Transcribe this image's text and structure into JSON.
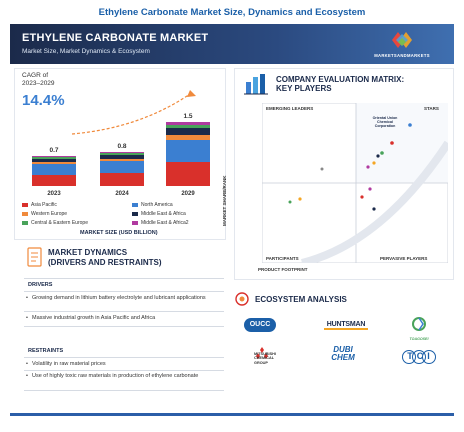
{
  "header": {
    "top_title": "Ethylene Carbonate Market Size, Dynamics and Ecosystem",
    "banner_title": "ETHYLENE CARBONATE MARKET",
    "banner_subtitle": "Market Size, Market Dynamics & Ecosystem",
    "logo_text": "MARKETSANDMARKETS"
  },
  "market": {
    "cagr_label_1": "CAGR of",
    "cagr_label_2": "2023–2029",
    "cagr_value": "14.4%",
    "axis_title": "MARKET SIZE (USD BILLION)"
  },
  "chart_data": {
    "type": "bar",
    "stacked": true,
    "categories": [
      "2023",
      "2024",
      "2029"
    ],
    "totals": [
      0.7,
      0.8,
      1.5
    ],
    "series": [
      {
        "name": "Asia Pacific",
        "color": "#d9302b"
      },
      {
        "name": "North America",
        "color": "#3b7fd1"
      },
      {
        "name": "Western Europe",
        "color": "#f08a3c"
      },
      {
        "name": "Middle East & Africa",
        "color": "#1b2a4a"
      },
      {
        "name": "Central & Eastern Europe",
        "color": "#49a35a"
      },
      {
        "name": "Middle East & Africa2",
        "color": "#b03aa0"
      }
    ],
    "total_labels": [
      "0.7",
      "0.8",
      "1.5"
    ]
  },
  "dynamics": {
    "title_1": "MARKET DYNAMICS",
    "title_2": "(DRIVERS AND RESTRAINTS)",
    "drivers_label": "DRIVERS",
    "drivers": [
      "Growing demand in lithium battery electrolyte and lubricant applications",
      "Massive industrial growth in Asia Pacific and Africa"
    ],
    "restraints_label": "RESTRAINTS",
    "restraints": [
      "Volatility in raw material prices",
      "Use of highly toxic raw materials in production of ethylene carbonate"
    ]
  },
  "matrix": {
    "title_1": "COMPANY EVALUATION MATRIX:",
    "title_2": "KEY PLAYERS",
    "q_emerging": "EMERGING LEADERS",
    "q_stars": "STARS",
    "q_participants": "PARTICIPANTS",
    "q_pervasive": "PERVASIVE PLAYERS",
    "y_axis": "MARKET SHARE/RANK",
    "x_axis": "PRODUCT FOOTPRINT",
    "highlight_company": "Oriental Union Chemical Corporation"
  },
  "ecosystem": {
    "title": "ECOSYSTEM ANALYSIS",
    "logos": [
      "OUCC",
      "HUNTSMAN",
      "TOAGOSEI",
      "MITSUBISHI CHEMICAL GROUP",
      "DUBI CHEM",
      "TCI"
    ]
  }
}
